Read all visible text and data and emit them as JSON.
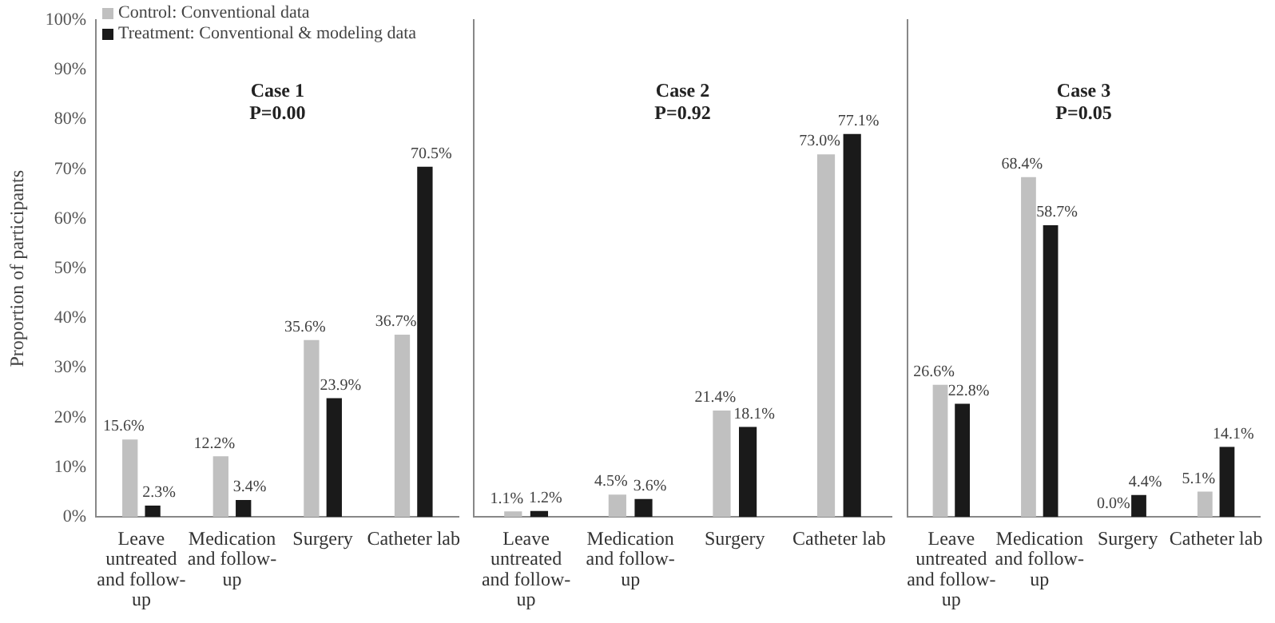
{
  "chart_data": [
    {
      "type": "bar",
      "ylabel": "Proportion of participants",
      "categories": [
        "Leave untreated and follow-up",
        "Medication and follow-up",
        "Surgery",
        "Catheter lab"
      ],
      "series": [
        {
          "name": "Control: Conventional data",
          "color": "#c0c0c0",
          "values": [
            15.6,
            12.2,
            35.6,
            36.7
          ],
          "value_labels": [
            "15.6%",
            "12.2%",
            "35.6%",
            "36.7%"
          ]
        },
        {
          "name": "Treatment: Conventional & modeling data",
          "color": "#1a1a1a",
          "values": [
            2.3,
            3.4,
            23.9,
            70.5
          ],
          "value_labels": [
            "2.3%",
            "3.4%",
            "23.9%",
            "70.5%"
          ]
        }
      ],
      "ylim": [
        0,
        100
      ],
      "yticks": [
        {
          "value": 0,
          "label": "0%"
        },
        {
          "value": 10,
          "label": "10%"
        },
        {
          "value": 20,
          "label": "20%"
        },
        {
          "value": 30,
          "label": "30%"
        },
        {
          "value": 40,
          "label": "40%"
        },
        {
          "value": 50,
          "label": "50%"
        },
        {
          "value": 60,
          "label": "60%"
        },
        {
          "value": 70,
          "label": "70%"
        },
        {
          "value": 80,
          "label": "80%"
        },
        {
          "value": 90,
          "label": "90%"
        },
        {
          "value": 100,
          "label": "100%"
        }
      ],
      "annotations": [
        "Case 1\nP=0.00"
      ],
      "grid": false,
      "legend": "top left"
    },
    {
      "type": "bar",
      "categories": [
        "Leave untreated and follow-up",
        "Medication and follow-up",
        "Surgery",
        "Catheter lab"
      ],
      "series": [
        {
          "color": "#c0c0c0",
          "values": [
            1.1,
            4.5,
            21.4,
            73.0
          ],
          "value_labels": [
            "1.1%",
            "4.5%",
            "21.4%",
            "73.0%"
          ]
        },
        {
          "color": "#1a1a1a",
          "values": [
            1.2,
            3.6,
            18.1,
            77.1
          ],
          "value_labels": [
            "1.2%",
            "3.6%",
            "18.1%",
            "77.1%"
          ]
        }
      ],
      "ylim": [
        0,
        100
      ],
      "tick_labels": "x",
      "annotations": [
        "Case 2\nP=0.92"
      ],
      "grid": false
    },
    {
      "type": "bar",
      "categories": [
        "Leave untreated and follow-up",
        "Medication and follow-up",
        "Surgery",
        "Catheter lab"
      ],
      "series": [
        {
          "color": "#c0c0c0",
          "values": [
            26.6,
            68.4,
            0.0,
            5.1
          ],
          "value_labels": [
            "26.6%",
            "68.4%",
            "0.0%",
            "5.1%"
          ]
        },
        {
          "color": "#1a1a1a",
          "values": [
            22.8,
            58.7,
            4.4,
            14.1
          ],
          "value_labels": [
            "22.8%",
            "58.7%",
            "4.4%",
            "14.1%"
          ]
        }
      ],
      "ylim": [
        0,
        100
      ],
      "tick_labels": "x",
      "annotations": [
        "Case 3\nP=0.05"
      ],
      "grid": false
    }
  ]
}
